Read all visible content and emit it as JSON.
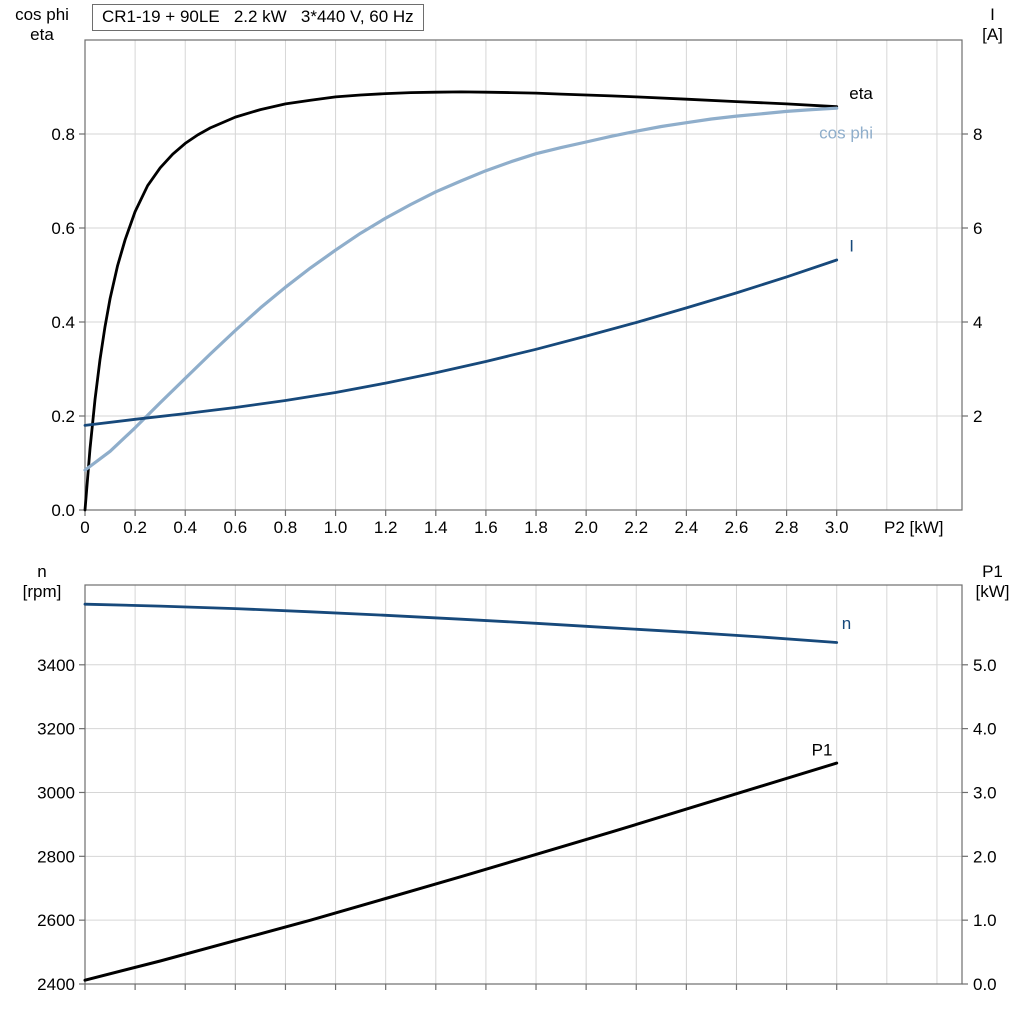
{
  "colors": {
    "black": "#000000",
    "light_blue": "#8FAECB",
    "dark_blue": "#17497B",
    "grid": "#D6D6D6",
    "frame": "#6E6E6E"
  },
  "chart_data": [
    {
      "type": "line",
      "title": "CR1-19 + 90LE   2.2 kW   3*440 V, 60 Hz",
      "xlabel": "P2 [kW]",
      "xlim": [
        0,
        3.5
      ],
      "grid": true,
      "grid_x_step": 0.2,
      "legend_position": "inline-labels",
      "x_tick_values": [
        0,
        0.2,
        0.4,
        0.6,
        0.8,
        1.0,
        1.2,
        1.4,
        1.6,
        1.8,
        2.0,
        2.2,
        2.4,
        2.6,
        2.8,
        3.0
      ],
      "x_tick_labels": [
        "0",
        "0.2",
        "0.4",
        "0.6",
        "0.8",
        "1.0",
        "1.2",
        "1.4",
        "1.6",
        "1.8",
        "2.0",
        "2.2",
        "2.4",
        "2.6",
        "2.8",
        "3.0"
      ],
      "left_axis": {
        "label_lines": [
          "cos phi",
          "eta"
        ],
        "lim": [
          0,
          1.0
        ],
        "ticks": [
          0,
          0.2,
          0.4,
          0.6,
          0.8
        ],
        "tick_labels": [
          "0.0",
          "0.2",
          "0.4",
          "0.6",
          "0.8"
        ]
      },
      "right_axis": {
        "label_lines": [
          "I",
          "[A]"
        ],
        "lim": [
          0,
          10
        ],
        "ticks": [
          2,
          4,
          6,
          8
        ],
        "tick_labels": [
          "2",
          "4",
          "6",
          "8"
        ]
      },
      "series": [
        {
          "name": "eta",
          "axis": "left",
          "color": "#000000",
          "stroke_width": 2.8,
          "label_pos": {
            "x": 3.05,
            "y": 0.875
          },
          "points": [
            [
              0,
              0
            ],
            [
              0.02,
              0.13
            ],
            [
              0.04,
              0.235
            ],
            [
              0.06,
              0.32
            ],
            [
              0.08,
              0.39
            ],
            [
              0.1,
              0.45
            ],
            [
              0.13,
              0.52
            ],
            [
              0.16,
              0.575
            ],
            [
              0.2,
              0.635
            ],
            [
              0.25,
              0.69
            ],
            [
              0.3,
              0.728
            ],
            [
              0.35,
              0.757
            ],
            [
              0.4,
              0.78
            ],
            [
              0.45,
              0.798
            ],
            [
              0.5,
              0.813
            ],
            [
              0.6,
              0.836
            ],
            [
              0.7,
              0.852
            ],
            [
              0.8,
              0.864
            ],
            [
              0.9,
              0.872
            ],
            [
              1.0,
              0.879
            ],
            [
              1.1,
              0.883
            ],
            [
              1.2,
              0.886
            ],
            [
              1.3,
              0.888
            ],
            [
              1.4,
              0.889
            ],
            [
              1.5,
              0.8895
            ],
            [
              1.6,
              0.889
            ],
            [
              1.7,
              0.888
            ],
            [
              1.8,
              0.887
            ],
            [
              1.9,
              0.885
            ],
            [
              2.0,
              0.883
            ],
            [
              2.1,
              0.881
            ],
            [
              2.2,
              0.879
            ],
            [
              2.4,
              0.874
            ],
            [
              2.6,
              0.869
            ],
            [
              2.8,
              0.864
            ],
            [
              3.0,
              0.858
            ]
          ]
        },
        {
          "name": "cos phi",
          "axis": "left",
          "color": "#8FAECB",
          "stroke_width": 3.2,
          "label_pos": {
            "x": 2.93,
            "y": 0.79
          },
          "points": [
            [
              0,
              0.085
            ],
            [
              0.1,
              0.125
            ],
            [
              0.2,
              0.175
            ],
            [
              0.3,
              0.228
            ],
            [
              0.4,
              0.28
            ],
            [
              0.5,
              0.332
            ],
            [
              0.6,
              0.382
            ],
            [
              0.7,
              0.43
            ],
            [
              0.8,
              0.474
            ],
            [
              0.9,
              0.515
            ],
            [
              1.0,
              0.553
            ],
            [
              1.1,
              0.589
            ],
            [
              1.2,
              0.621
            ],
            [
              1.3,
              0.65
            ],
            [
              1.4,
              0.677
            ],
            [
              1.5,
              0.7
            ],
            [
              1.6,
              0.722
            ],
            [
              1.7,
              0.741
            ],
            [
              1.8,
              0.758
            ],
            [
              1.9,
              0.771
            ],
            [
              2.0,
              0.783
            ],
            [
              2.1,
              0.795
            ],
            [
              2.2,
              0.806
            ],
            [
              2.3,
              0.816
            ],
            [
              2.4,
              0.824
            ],
            [
              2.5,
              0.832
            ],
            [
              2.6,
              0.838
            ],
            [
              2.7,
              0.843
            ],
            [
              2.8,
              0.848
            ],
            [
              2.9,
              0.852
            ],
            [
              3.0,
              0.855
            ]
          ]
        },
        {
          "name": "I",
          "axis": "right",
          "color": "#17497B",
          "stroke_width": 2.8,
          "label_pos": {
            "x": 3.05,
            "y": 5.5
          },
          "points": [
            [
              0,
              1.8
            ],
            [
              0.2,
              1.93
            ],
            [
              0.4,
              2.05
            ],
            [
              0.6,
              2.18
            ],
            [
              0.8,
              2.33
            ],
            [
              1.0,
              2.5
            ],
            [
              1.2,
              2.7
            ],
            [
              1.4,
              2.92
            ],
            [
              1.6,
              3.16
            ],
            [
              1.8,
              3.42
            ],
            [
              2.0,
              3.7
            ],
            [
              2.2,
              3.99
            ],
            [
              2.4,
              4.3
            ],
            [
              2.6,
              4.62
            ],
            [
              2.8,
              4.96
            ],
            [
              3.0,
              5.32
            ]
          ]
        }
      ]
    },
    {
      "type": "line",
      "title": "",
      "xlabel": "",
      "xlim": [
        0,
        3.5
      ],
      "grid": true,
      "grid_x_step": 0.2,
      "legend_position": "inline-labels",
      "x_tick_values": [
        0,
        0.2,
        0.4,
        0.6,
        0.8,
        1.0,
        1.2,
        1.4,
        1.6,
        1.8,
        2.0,
        2.2,
        2.4,
        2.6,
        2.8,
        3.0
      ],
      "x_tick_labels": [],
      "left_axis": {
        "label_lines": [
          "n",
          "[rpm]"
        ],
        "lim": [
          2400,
          3650
        ],
        "ticks": [
          2400,
          2600,
          2800,
          3000,
          3200,
          3400
        ],
        "tick_labels": [
          "2400",
          "2600",
          "2800",
          "3000",
          "3200",
          "3400"
        ]
      },
      "right_axis": {
        "label_lines": [
          "P1",
          "[kW]"
        ],
        "lim": [
          0,
          6.25
        ],
        "ticks": [
          0,
          1,
          2,
          3,
          4,
          5
        ],
        "tick_labels": [
          "0.0",
          "1.0",
          "2.0",
          "3.0",
          "4.0",
          "5.0"
        ]
      },
      "series": [
        {
          "name": "n",
          "axis": "left",
          "color": "#17497B",
          "stroke_width": 2.8,
          "label_pos": {
            "x": 3.02,
            "y": 3512
          },
          "points": [
            [
              0,
              3590
            ],
            [
              0.3,
              3584
            ],
            [
              0.6,
              3576
            ],
            [
              0.9,
              3566
            ],
            [
              1.2,
              3555
            ],
            [
              1.5,
              3543
            ],
            [
              1.8,
              3530
            ],
            [
              2.1,
              3516
            ],
            [
              2.4,
              3502
            ],
            [
              2.7,
              3487
            ],
            [
              3.0,
              3470
            ]
          ]
        },
        {
          "name": "P1",
          "axis": "right",
          "color": "#000000",
          "stroke_width": 3,
          "label_pos": {
            "x": 2.9,
            "y": 3.58
          },
          "points": [
            [
              0,
              0.06
            ],
            [
              0.3,
              0.36
            ],
            [
              0.6,
              0.68
            ],
            [
              0.9,
              1.0
            ],
            [
              1.2,
              1.34
            ],
            [
              1.5,
              1.68
            ],
            [
              1.8,
              2.03
            ],
            [
              2.1,
              2.38
            ],
            [
              2.4,
              2.74
            ],
            [
              2.7,
              3.1
            ],
            [
              3.0,
              3.46
            ]
          ]
        }
      ]
    }
  ]
}
